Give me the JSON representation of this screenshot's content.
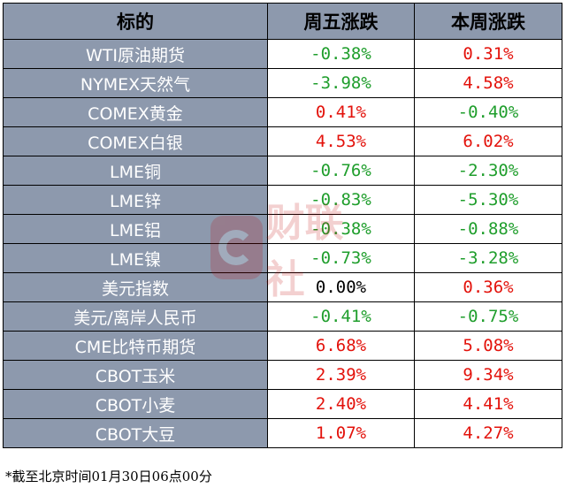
{
  "header": [
    "标的",
    "周五涨跌",
    "本周涨跌"
  ],
  "rows": [
    {
      "name": "WTI原油期货",
      "fri": "-0.38%",
      "week": "0.31%"
    },
    {
      "name": "NYMEX天然气",
      "fri": "-3.98%",
      "week": "4.58%"
    },
    {
      "name": "COMEX黄金",
      "fri": "0.41%",
      "week": "-0.40%"
    },
    {
      "name": "COMEX白银",
      "fri": "4.53%",
      "week": "6.02%"
    },
    {
      "name": "LME铜",
      "fri": "-0.76%",
      "week": "-2.30%"
    },
    {
      "name": "LME锌",
      "fri": "-0.83%",
      "week": "-5.30%"
    },
    {
      "name": "LME铝",
      "fri": "-0.38%",
      "week": "-0.88%"
    },
    {
      "name": "LME镍",
      "fri": "-0.73%",
      "week": "-3.28%"
    },
    {
      "name": "美元指数",
      "fri": "0.00%",
      "week": "0.36%"
    },
    {
      "name": "美元/离岸人民币",
      "fri": "-0.41%",
      "week": "-0.75%"
    },
    {
      "name": "CME比特币期货",
      "fri": "6.68%",
      "week": "5.08%"
    },
    {
      "name": "CBOT玉米",
      "fri": "2.39%",
      "week": "9.34%"
    },
    {
      "name": "CBOT小麦",
      "fri": "2.40%",
      "week": "4.41%"
    },
    {
      "name": "CBOT大豆",
      "fri": "1.07%",
      "week": "4.27%"
    }
  ],
  "watermark": {
    "text": "财联社"
  },
  "footnote": "*截至北京时间01月30日06点00分",
  "colors": {
    "up": "#e3120b",
    "down": "#1f9e2c",
    "flat": "#000000",
    "header_bg": "#8d99ad"
  }
}
